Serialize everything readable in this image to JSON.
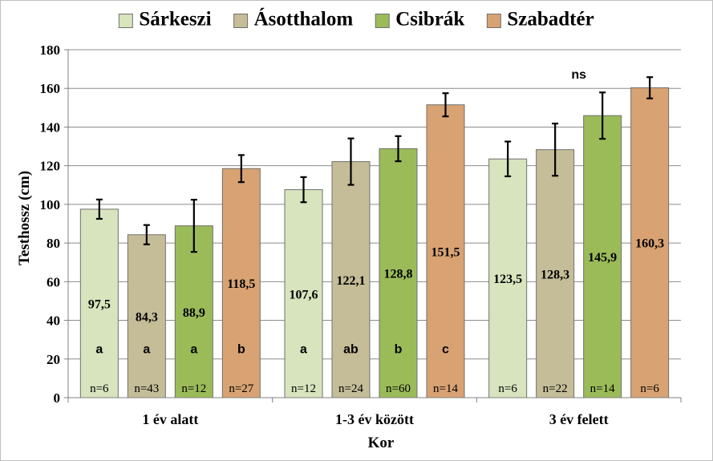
{
  "chart_data": {
    "type": "bar",
    "title": "",
    "xlabel": "Kor",
    "ylabel": "Testhossz (cm)",
    "ylim": [
      0,
      180
    ],
    "yticks": [
      0,
      20,
      40,
      60,
      80,
      100,
      120,
      140,
      160,
      180
    ],
    "grid": true,
    "legend_position": "top",
    "categories": [
      "1 év alatt",
      "1-3 év között",
      "3 év felett"
    ],
    "series": [
      {
        "name": "Sárkeszi",
        "color": "#d7e4bd",
        "values": [
          97.5,
          107.6,
          123.5
        ],
        "value_labels": [
          "97,5",
          "107,6",
          "123,5"
        ],
        "errors": [
          5,
          6.5,
          9
        ],
        "letters": [
          "a",
          "a",
          ""
        ],
        "n_labels": [
          "n=6",
          "n=12",
          "n=6"
        ]
      },
      {
        "name": "Ásotthalom",
        "color": "#c4bd97",
        "values": [
          84.3,
          122.1,
          128.3
        ],
        "value_labels": [
          "84,3",
          "122,1",
          "128,3"
        ],
        "errors": [
          5,
          12,
          13.5
        ],
        "letters": [
          "a",
          "ab",
          ""
        ],
        "n_labels": [
          "n=43",
          "n=24",
          "n=22"
        ]
      },
      {
        "name": "Csibrák",
        "color": "#9bbb59",
        "values": [
          88.9,
          128.8,
          145.9
        ],
        "value_labels": [
          "88,9",
          "128,8",
          "145,9"
        ],
        "errors": [
          13.5,
          6.5,
          12
        ],
        "letters": [
          "a",
          "b",
          ""
        ],
        "n_labels": [
          "n=12",
          "n=60",
          "n=14"
        ]
      },
      {
        "name": "Szabadtér",
        "color": "#d8a273",
        "values": [
          118.5,
          151.5,
          160.3
        ],
        "value_labels": [
          "118,5",
          "151,5",
          "160,3"
        ],
        "errors": [
          7,
          6,
          5.5
        ],
        "letters": [
          "b",
          "c",
          ""
        ],
        "n_labels": [
          "n=27",
          "n=14",
          "n=6"
        ]
      }
    ],
    "group_annotations": [
      "",
      "",
      "ns"
    ]
  }
}
